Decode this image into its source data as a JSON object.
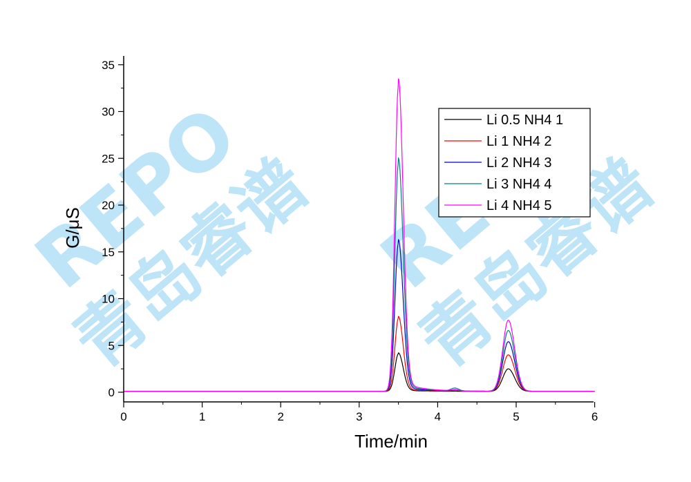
{
  "chart_data": {
    "type": "line",
    "xlabel": "Time/min",
    "ylabel": "G/μS",
    "xlim": [
      0,
      6
    ],
    "ylim": [
      -1,
      36
    ],
    "xticks": [
      "0",
      "1",
      "2",
      "3",
      "4",
      "5",
      "6"
    ],
    "yticks": [
      "0",
      "5",
      "10",
      "15",
      "20",
      "25",
      "30",
      "35"
    ],
    "grid": false,
    "legend_position": "top-right",
    "baseline": 0.1,
    "peak1_time": 3.5,
    "peak2_time": 4.9,
    "series": [
      {
        "name": "Li 0.5  NH4 1",
        "color": "#000000",
        "peak1": 4.0,
        "peak2": 2.4,
        "small_peak": 0.0
      },
      {
        "name": "Li 1  NH4 2",
        "color": "#ff0000",
        "peak1": 7.8,
        "peak2": 3.9,
        "small_peak": 0.1
      },
      {
        "name": "Li 2  NH4 3",
        "color": "#0000cc",
        "peak1": 15.8,
        "peak2": 5.3,
        "small_peak": 0.15
      },
      {
        "name": "Li 3  NH4 4",
        "color": "#008080",
        "peak1": 24.3,
        "peak2": 6.5,
        "small_peak": 0.3
      },
      {
        "name": "Li 4  NH4 5",
        "color": "#ff00ff",
        "peak1": 32.6,
        "peak2": 7.6,
        "small_peak": 0.1
      }
    ]
  },
  "watermark": {
    "latin": "REPO",
    "chinese": "青岛睿谱",
    "color": "#a9dcf6"
  }
}
